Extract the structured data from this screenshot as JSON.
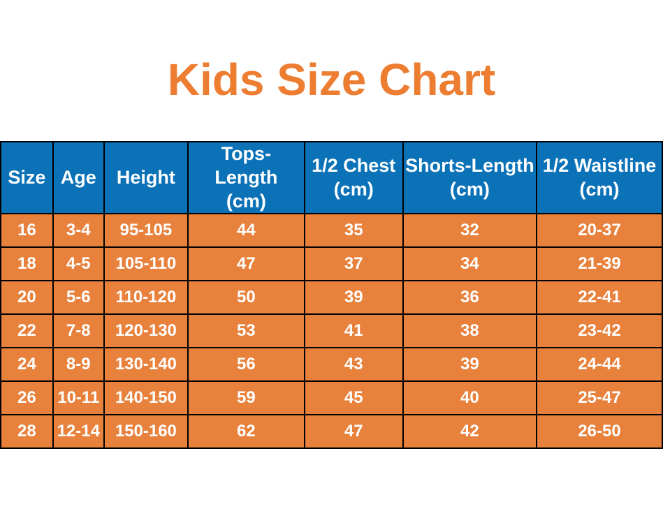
{
  "title": {
    "text": "Kids Size Chart"
  },
  "colors": {
    "title_color": "#ED7D31",
    "header_bg": "#0B72B8",
    "row_bg": "#E8813C",
    "header_text": "#FFFFFF",
    "row_text": "#FFFFFF",
    "border_color": "#000000",
    "page_bg": "#FFFFFF"
  },
  "chart_data": {
    "type": "table",
    "title": "Kids Size Chart",
    "columns": [
      "Size",
      "Age",
      "Height",
      "Tops-Length\n(cm)",
      "1/2 Chest\n(cm)",
      "Shorts-Length\n(cm)",
      "1/2 Waistline\n(cm)"
    ],
    "rows": [
      [
        "16",
        "3-4",
        "95-105",
        "44",
        "35",
        "32",
        "20-37"
      ],
      [
        "18",
        "4-5",
        "105-110",
        "47",
        "37",
        "34",
        "21-39"
      ],
      [
        "20",
        "5-6",
        "110-120",
        "50",
        "39",
        "36",
        "22-41"
      ],
      [
        "22",
        "7-8",
        "120-130",
        "53",
        "41",
        "38",
        "23-42"
      ],
      [
        "24",
        "8-9",
        "130-140",
        "56",
        "43",
        "39",
        "24-44"
      ],
      [
        "26",
        "10-11",
        "140-150",
        "59",
        "45",
        "40",
        "25-47"
      ],
      [
        "28",
        "12-14",
        "150-160",
        "62",
        "47",
        "42",
        "26-50"
      ]
    ]
  }
}
